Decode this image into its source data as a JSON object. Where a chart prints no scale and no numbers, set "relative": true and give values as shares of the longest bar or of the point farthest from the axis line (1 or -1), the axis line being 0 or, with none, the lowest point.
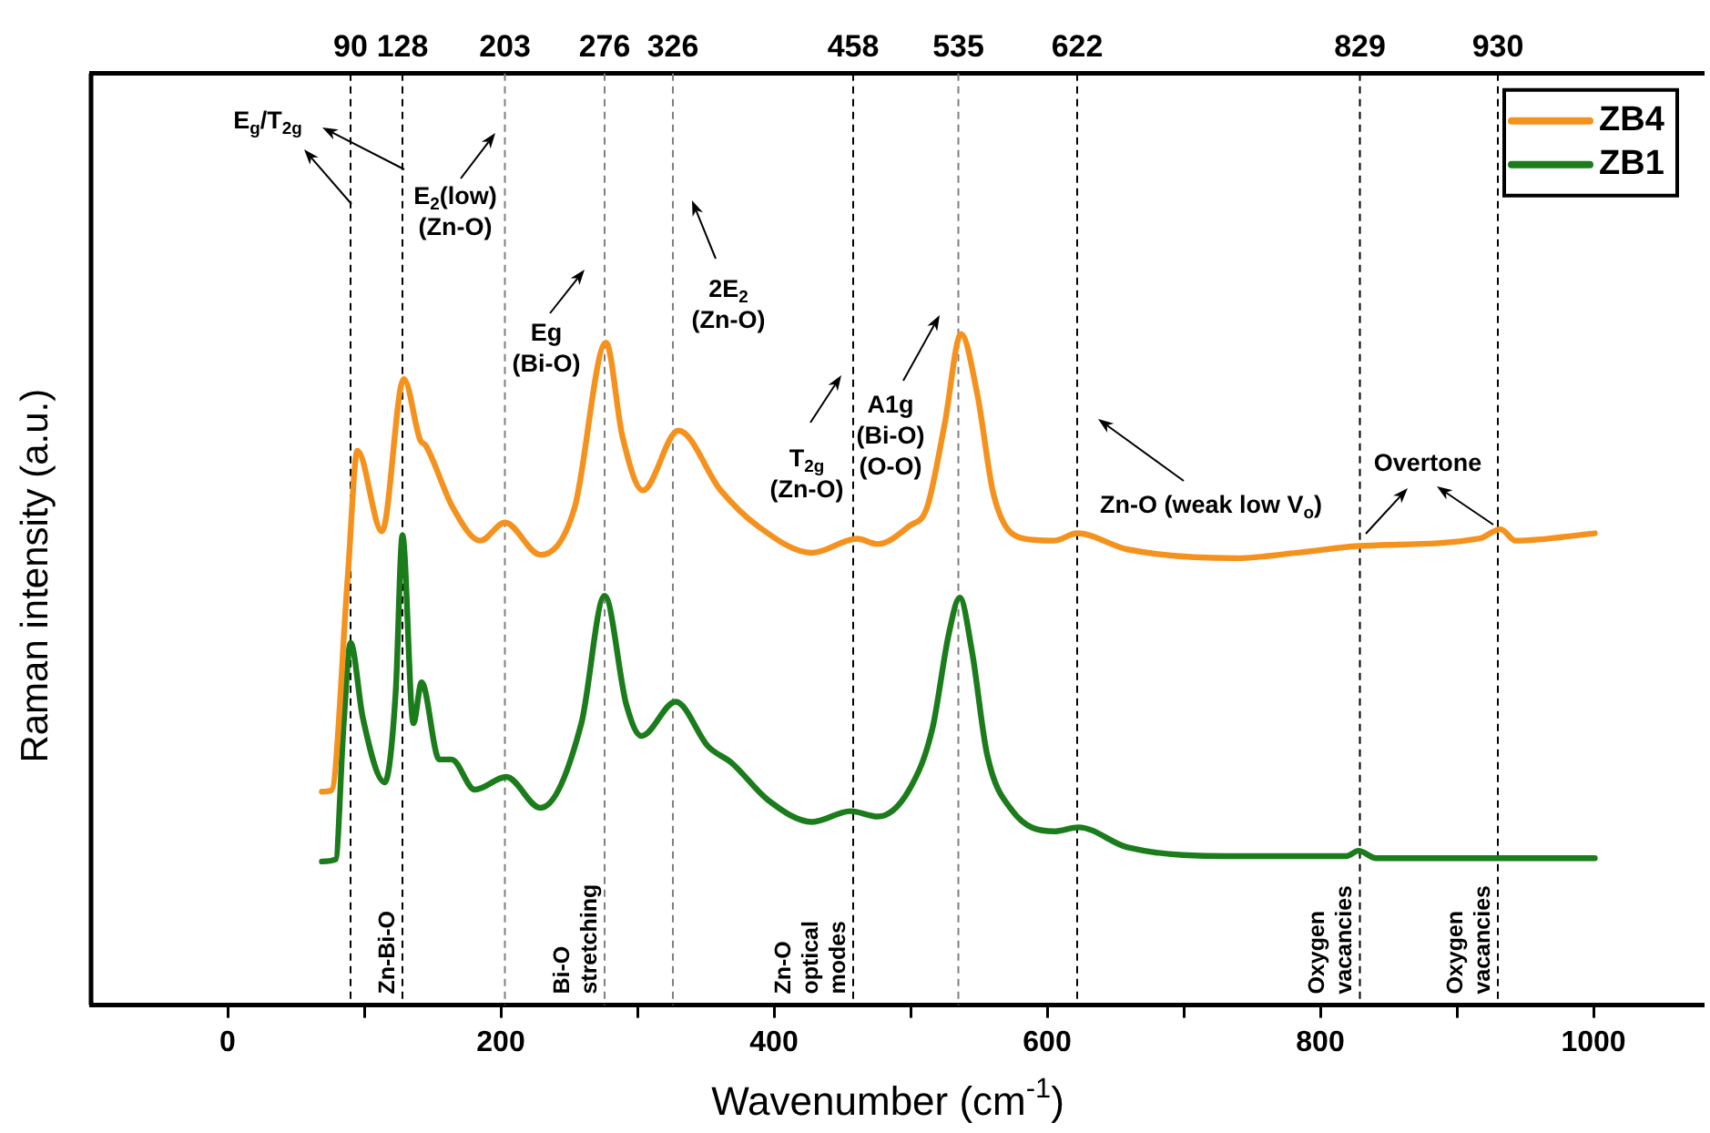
{
  "chart_data": {
    "type": "line",
    "relative": true,
    "xlabel": "Wavenumber (cm$^{-1}$)",
    "ylabel": "Raman intensity (a.u.)",
    "xlim": [
      -100,
      1080
    ],
    "xticks": [
      0,
      {
        "value": 100,
        "label": null
      },
      200,
      {
        "value": 300,
        "label": null
      },
      400,
      {
        "value": 500,
        "label": null
      },
      600,
      {
        "value": 700,
        "label": null
      },
      800,
      {
        "value": 900,
        "label": null
      },
      1000
    ],
    "x2lim": [
      -100,
      1080
    ],
    "x2ticks": [
      90,
      128,
      203,
      276,
      326,
      458,
      535,
      622,
      829,
      930
    ],
    "legend": "top right",
    "grid": false,
    "marker": "none",
    "line_style": "solid",
    "series": [
      {
        "name": "ZB4",
        "color": "#f5921e",
        "x": [
          69,
          76,
          88,
          95,
          113,
          129,
          141,
          145,
          165,
          185,
          203,
          229,
          254,
          277,
          289,
          304,
          330,
          361,
          388,
          428,
          461,
          476,
          499,
          512,
          525,
          537,
          549,
          561,
          583,
          605,
          622,
          659,
          739,
          783,
          828,
          916,
          932,
          943,
          1001
        ],
        "values": [
          0.318,
          0.32,
          0.64,
          0.826,
          0.706,
          0.933,
          0.842,
          0.834,
          0.741,
          0.692,
          0.719,
          0.671,
          0.741,
          0.987,
          0.848,
          0.767,
          0.856,
          0.767,
          0.714,
          0.674,
          0.695,
          0.687,
          0.714,
          0.741,
          0.866,
          1.0,
          0.909,
          0.759,
          0.695,
          0.692,
          0.703,
          0.679,
          0.666,
          0.674,
          0.684,
          0.695,
          0.709,
          0.692,
          0.703
        ]
      },
      {
        "name": "ZB1",
        "color": "#1b7c1b",
        "x": [
          69,
          79,
          85,
          90,
          99,
          115,
          123,
          128,
          136,
          142,
          155,
          164,
          181,
          204,
          229,
          259,
          276,
          292,
          303,
          328,
          352,
          369,
          396,
          428,
          456,
          476,
          499,
          516,
          528,
          536,
          545,
          556,
          574,
          605,
          623,
          659,
          739,
          819,
          828,
          841,
          1001
        ],
        "values": [
          0.214,
          0.217,
          0.42,
          0.54,
          0.428,
          0.332,
          0.465,
          0.7,
          0.42,
          0.481,
          0.366,
          0.366,
          0.321,
          0.34,
          0.294,
          0.42,
          0.61,
          0.447,
          0.401,
          0.452,
          0.385,
          0.361,
          0.305,
          0.273,
          0.289,
          0.281,
          0.321,
          0.412,
          0.553,
          0.607,
          0.527,
          0.374,
          0.291,
          0.259,
          0.265,
          0.235,
          0.222,
          0.222,
          0.23,
          0.219,
          0.219
        ]
      }
    ],
    "ref_lines": [
      {
        "axis": "x",
        "value": 90,
        "label": null,
        "color": "#000000",
        "line_style": "dashed"
      },
      {
        "axis": "x",
        "value": 128,
        "label": "Zn-Bi-O",
        "color": "#000000",
        "line_style": "dashed"
      },
      {
        "axis": "x",
        "value": 203,
        "label": null,
        "color": "#808080",
        "line_style": "dashed"
      },
      {
        "axis": "x",
        "value": 276,
        "label": "Bi-O\nstretching",
        "color": "#808080",
        "line_style": "dashed"
      },
      {
        "axis": "x",
        "value": 326,
        "label": null,
        "color": "#808080",
        "line_style": "dashed"
      },
      {
        "axis": "x",
        "value": 458,
        "label": "Zn-O\noptical\nmodes",
        "color": "#000000",
        "line_style": "dashed"
      },
      {
        "axis": "x",
        "value": 535,
        "label": null,
        "color": "#808080",
        "line_style": "dashed"
      },
      {
        "axis": "x",
        "value": 622,
        "label": null,
        "color": "#000000",
        "line_style": "dashed"
      },
      {
        "axis": "x",
        "value": 829,
        "label": "Oxygen\nvacancies",
        "color": "#000000",
        "line_style": "dashed"
      },
      {
        "axis": "x",
        "value": 930,
        "label": "Oxygen\nvacancies",
        "color": "#000000",
        "line_style": "dashed"
      }
    ],
    "annotations": [
      "E$_{g}$/T$_{2g}$",
      "E$_{2}$(low)\n(Zn-O)",
      "Eg\n(Bi-O)",
      "2E$_{2}$\n(Zn-O)",
      "T$_{2g}$\n(Zn-O)",
      "A1g\n(Bi-O)\n(O-O)",
      "Zn-O (weak low V$_{o}$)",
      "Overtone"
    ]
  }
}
